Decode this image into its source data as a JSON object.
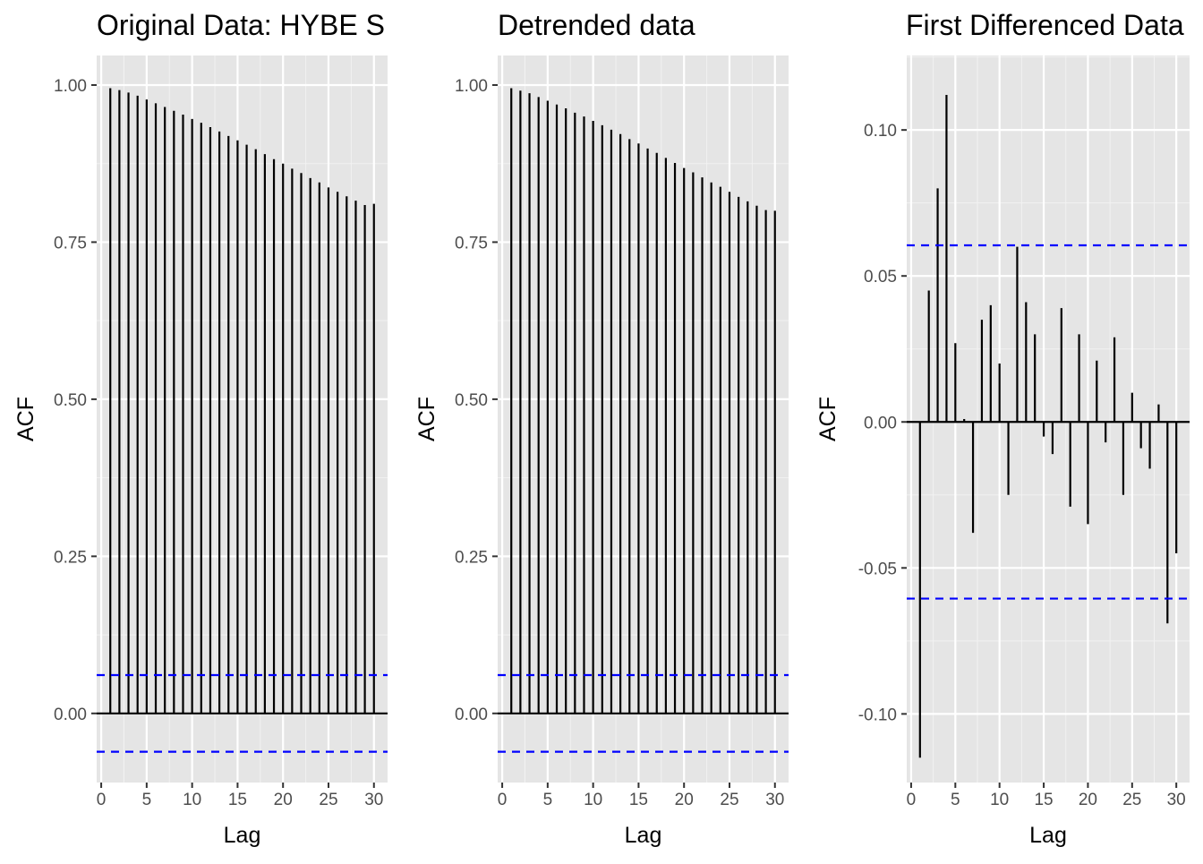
{
  "chart_data": [
    {
      "type": "bar",
      "title": "Original Data: HYBE S",
      "xlabel": "Lag",
      "ylabel": "ACF",
      "xlim": [
        -0.5,
        31.5
      ],
      "ylim": [
        -0.11,
        1.047
      ],
      "x_ticks": [
        0,
        5,
        10,
        15,
        20,
        25,
        30
      ],
      "x_tick_labels": [
        "0",
        "5",
        "10",
        "15",
        "20",
        "25",
        "30"
      ],
      "y_ticks": [
        0,
        0.25,
        0.5,
        0.75,
        1.0
      ],
      "y_tick_labels": [
        "0.00",
        "0.25",
        "0.50",
        "0.75",
        "1.00"
      ],
      "confidence_bound": 0.061,
      "lags": [
        1,
        2,
        3,
        4,
        5,
        6,
        7,
        8,
        9,
        10,
        11,
        12,
        13,
        14,
        15,
        16,
        17,
        18,
        19,
        20,
        21,
        22,
        23,
        24,
        25,
        26,
        27,
        28,
        29,
        30
      ],
      "values": [
        0.995,
        0.992,
        0.988,
        0.983,
        0.977,
        0.971,
        0.965,
        0.959,
        0.953,
        0.946,
        0.94,
        0.933,
        0.926,
        0.919,
        0.912,
        0.905,
        0.898,
        0.89,
        0.882,
        0.875,
        0.867,
        0.86,
        0.852,
        0.845,
        0.837,
        0.83,
        0.823,
        0.816,
        0.809,
        0.811
      ],
      "grid": true,
      "colors": {
        "panel": "#E5E5E5",
        "bars": "#000000",
        "bound": "#0000FF"
      }
    },
    {
      "type": "bar",
      "title": "Detrended data",
      "xlabel": "Lag",
      "ylabel": "ACF",
      "xlim": [
        -0.5,
        31.5
      ],
      "ylim": [
        -0.11,
        1.047
      ],
      "x_ticks": [
        0,
        5,
        10,
        15,
        20,
        25,
        30
      ],
      "x_tick_labels": [
        "0",
        "5",
        "10",
        "15",
        "20",
        "25",
        "30"
      ],
      "y_ticks": [
        0,
        0.25,
        0.5,
        0.75,
        1.0
      ],
      "y_tick_labels": [
        "0.00",
        "0.25",
        "0.50",
        "0.75",
        "1.00"
      ],
      "confidence_bound": 0.061,
      "lags": [
        1,
        2,
        3,
        4,
        5,
        6,
        7,
        8,
        9,
        10,
        11,
        12,
        13,
        14,
        15,
        16,
        17,
        18,
        19,
        20,
        21,
        22,
        23,
        24,
        25,
        26,
        27,
        28,
        29,
        30
      ],
      "values": [
        0.995,
        0.991,
        0.987,
        0.981,
        0.975,
        0.969,
        0.963,
        0.956,
        0.95,
        0.943,
        0.936,
        0.929,
        0.922,
        0.914,
        0.907,
        0.899,
        0.892,
        0.884,
        0.876,
        0.868,
        0.861,
        0.853,
        0.845,
        0.838,
        0.83,
        0.822,
        0.815,
        0.808,
        0.801,
        0.8
      ],
      "grid": true,
      "colors": {
        "panel": "#E5E5E5",
        "bars": "#000000",
        "bound": "#0000FF"
      }
    },
    {
      "type": "bar",
      "title": "First Differenced Data",
      "xlabel": "Lag",
      "ylabel": "ACF",
      "xlim": [
        -0.5,
        31.5
      ],
      "ylim": [
        -0.1235,
        0.1255
      ],
      "x_ticks": [
        0,
        5,
        10,
        15,
        20,
        25,
        30
      ],
      "x_tick_labels": [
        "0",
        "5",
        "10",
        "15",
        "20",
        "25",
        "30"
      ],
      "y_ticks": [
        -0.1,
        -0.05,
        0,
        0.05,
        0.1
      ],
      "y_tick_labels": [
        "-0.10",
        "-0.05",
        "0.00",
        "0.05",
        "0.10"
      ],
      "confidence_bound": 0.0605,
      "lags": [
        1,
        2,
        3,
        4,
        5,
        6,
        7,
        8,
        9,
        10,
        11,
        12,
        13,
        14,
        15,
        16,
        17,
        18,
        19,
        20,
        21,
        22,
        23,
        24,
        25,
        26,
        27,
        28,
        29,
        30
      ],
      "values": [
        -0.115,
        0.045,
        0.08,
        0.112,
        0.027,
        0.001,
        -0.038,
        0.035,
        0.04,
        0.02,
        -0.025,
        0.06,
        0.041,
        0.03,
        -0.005,
        -0.011,
        0.039,
        -0.029,
        0.03,
        -0.035,
        0.021,
        -0.007,
        0.029,
        -0.025,
        0.01,
        -0.009,
        -0.016,
        0.006,
        -0.069,
        -0.045
      ],
      "grid": true,
      "colors": {
        "panel": "#E5E5E5",
        "bars": "#000000",
        "bound": "#0000FF"
      }
    }
  ]
}
